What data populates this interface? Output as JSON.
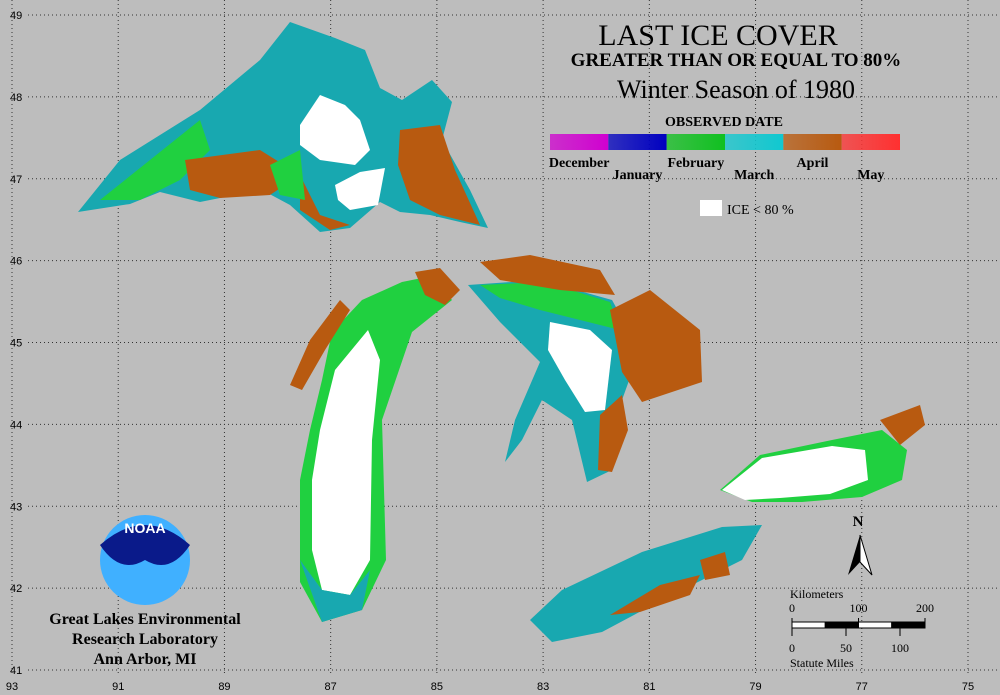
{
  "title": "LAST ICE COVER",
  "subtitle": "GREATER THAN OR EQUAL TO 80%",
  "season": "Winter Season of 1980",
  "legend": {
    "title": "OBSERVED DATE",
    "items": [
      {
        "label": "December",
        "color": "#d000d0"
      },
      {
        "label": "January",
        "color": "#0000c0"
      },
      {
        "label": "February",
        "color": "#10c020"
      },
      {
        "label": "March",
        "color": "#10c8d0"
      },
      {
        "label": "April",
        "color": "#b85a10"
      },
      {
        "label": "May",
        "color": "#ff3030"
      }
    ],
    "ice_label": "ICE < 80 %"
  },
  "latitude_ticks": [
    49,
    48,
    47,
    46,
    45,
    44,
    43,
    42,
    41
  ],
  "longitude_ticks": [
    93,
    91,
    89,
    87,
    85,
    83,
    81,
    79,
    77,
    75
  ],
  "scale": {
    "km_label": "Kilometers",
    "km_ticks": [
      0,
      100,
      200
    ],
    "mi_ticks": [
      0,
      50,
      100
    ],
    "mi_label": "Statute Miles"
  },
  "north": "N",
  "logo": "NOAA",
  "credit": [
    "Great Lakes Environmental",
    "Research Laboratory",
    "Ann Arbor, MI"
  ]
}
